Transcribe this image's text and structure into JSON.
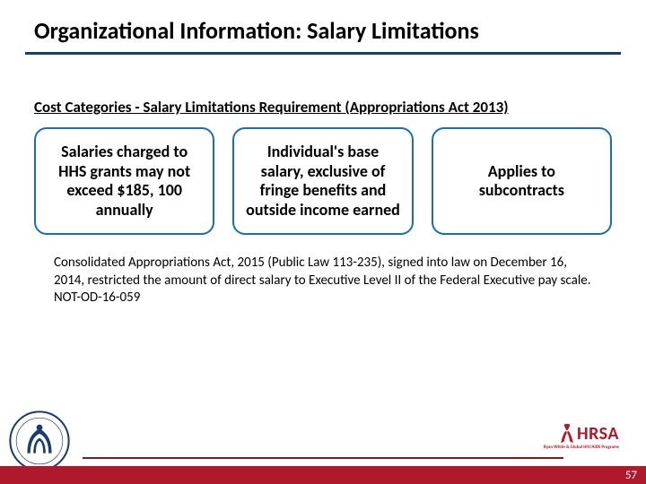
{
  "title": "Organizational Information: Salary Limitations",
  "subtitle": "Cost Categories  - Salary Limitations Requirement (Appropriations Act 2013)",
  "boxes": [
    {
      "text": "Salaries charged to HHS grants may not exceed $185, 100 annually"
    },
    {
      "text": "Individual's base salary, exclusive of fringe benefits and outside income earned"
    },
    {
      "text": "Applies to subcontracts"
    }
  ],
  "paragraph": "Consolidated Appropriations Act, 2015 (Public Law 113-235), signed into law on December 16, 2014, restricted the amount of direct salary to Executive Level II of the Federal Executive pay scale.\nNOT-OD-16-059",
  "page_number": "57",
  "colors": {
    "title_rule": "#1a3d6d",
    "box_border": "#1a6fb0",
    "footer_rule": "#7a1d1d",
    "accent_red": "#b0182b"
  },
  "logos": {
    "left": "hhs-seal",
    "right": "hrsa-logo",
    "hrsa_text": "HRSA",
    "hrsa_sub": "Ryan White & Global HIV/AIDS Programs"
  }
}
